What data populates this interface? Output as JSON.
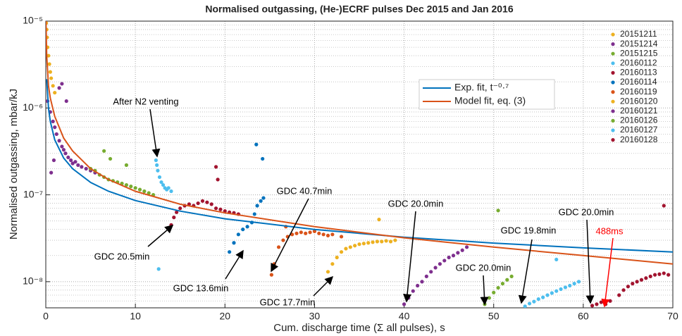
{
  "chart_data": {
    "type": "scatter",
    "title": "Normalised outgassing, (He-)ECRF pulses Dec 2015 and Jan 2016",
    "x_label": "Cum. discharge time (Σ all pulses), s",
    "y_label": "Normalised outgassing, mbar/kJ",
    "log_y": true,
    "grid": true,
    "xlim": [
      0,
      70
    ],
    "xticks": [
      0,
      10,
      20,
      30,
      40,
      50,
      60,
      70
    ],
    "ylim": [
      5e-09,
      1e-05
    ],
    "yticks": [
      {
        "value": 1e-08,
        "label": "10⁻⁸"
      },
      {
        "value": 1e-07,
        "label": "10⁻⁷"
      },
      {
        "value": 1e-06,
        "label": "10⁻⁶"
      },
      {
        "value": 1e-05,
        "label": "10⁻⁵"
      }
    ],
    "series": [
      {
        "name": "20151211",
        "color": "#EDB120",
        "x": [
          0.05,
          0.1,
          0.15,
          0.2,
          0.3,
          0.4,
          0.5,
          0.6,
          0.8,
          1.0
        ],
        "values": [
          9.5e-06,
          8e-06,
          6.5e-06,
          5e-06,
          4e-06,
          3.2e-06,
          2.6e-06,
          2.2e-06,
          1.8e-06,
          1.5e-06
        ]
      },
      {
        "name": "20151214",
        "color": "#7E2F8E",
        "x": [
          0.2,
          0.5,
          0.8,
          1,
          1.2,
          1.5,
          1.8,
          2,
          2.2,
          2.5,
          2.8,
          3,
          3.3,
          3.6,
          4,
          4.5,
          5,
          5.5,
          1.5,
          1.8,
          2.3,
          0.6,
          0.9
        ],
        "values": [
          1.2e-06,
          9e-07,
          7e-07,
          6e-07,
          5e-07,
          4.2e-07,
          3.6e-07,
          3.3e-07,
          3e-07,
          2.7e-07,
          2.5e-07,
          2.3e-07,
          2.4e-07,
          2.2e-07,
          2.1e-07,
          2e-07,
          1.9e-07,
          1.8e-07,
          1.7e-06,
          1.9e-06,
          1.2e-06,
          1.8e-07,
          2.5e-07
        ]
      },
      {
        "name": "20151215",
        "color": "#77AC30",
        "x": [
          5,
          5.5,
          6,
          6.5,
          7,
          7.5,
          8,
          8.5,
          9,
          9.5,
          10,
          10.5,
          11,
          11.5,
          12,
          6.5,
          7.2,
          9
        ],
        "values": [
          2e-07,
          1.9e-07,
          1.7e-07,
          1.6e-07,
          1.5e-07,
          1.45e-07,
          1.4e-07,
          1.35e-07,
          1.3e-07,
          1.25e-07,
          1.2e-07,
          1.15e-07,
          1.1e-07,
          1.05e-07,
          1e-07,
          3.2e-07,
          2.6e-07,
          2.2e-07
        ]
      },
      {
        "name": "20160112",
        "color": "#4DBEEE",
        "x": [
          12.3,
          12.4,
          12.5,
          12.7,
          12.9,
          13.1,
          13.3,
          13.5,
          13.7,
          14,
          12.6
        ],
        "values": [
          2.5e-07,
          2.2e-07,
          1.9e-07,
          1.6e-07,
          1.4e-07,
          1.3e-07,
          1.2e-07,
          1.15e-07,
          1.2e-07,
          1.1e-07,
          1.4e-08
        ]
      },
      {
        "name": "20160113",
        "color": "#A2142F",
        "x": [
          14,
          14.3,
          14.6,
          15,
          15.5,
          16,
          16.5,
          17,
          17.5,
          18,
          18.5,
          19,
          19.5,
          20,
          20.5,
          21,
          21.5,
          19,
          19.2
        ],
        "values": [
          4.5e-08,
          5.5e-08,
          6.3e-08,
          7e-08,
          7.5e-08,
          7.8e-08,
          7.5e-08,
          8e-08,
          8.5e-08,
          8.2e-08,
          7.8e-08,
          7e-08,
          6.8e-08,
          6.5e-08,
          6.3e-08,
          6.2e-08,
          6e-08,
          2.1e-07,
          1.5e-07
        ]
      },
      {
        "name": "20160114",
        "color": "#0072BD",
        "x": [
          20.5,
          21,
          21.5,
          22,
          22.5,
          23,
          23.3,
          23.6,
          24,
          24.3,
          23.5,
          24.2
        ],
        "values": [
          2.2e-08,
          2.8e-08,
          3.5e-08,
          4e-08,
          4.3e-08,
          4.8e-08,
          6e-08,
          7.5e-08,
          8.5e-08,
          9.2e-08,
          3.8e-07,
          2.6e-07
        ]
      },
      {
        "name": "20160119",
        "color": "#D95319",
        "x": [
          25.2,
          25.5,
          26,
          26.5,
          27,
          27.5,
          28,
          28.5,
          29,
          29.5,
          30,
          30.5,
          31,
          31.5,
          32,
          33,
          26.8
        ],
        "values": [
          1.2e-08,
          1.6e-08,
          2.5e-08,
          3e-08,
          3.3e-08,
          3.5e-08,
          3.6e-08,
          3.7e-08,
          3.6e-08,
          3.7e-08,
          3.8e-08,
          3.6e-08,
          3.5e-08,
          3.4e-08,
          3.5e-08,
          3.3e-08,
          4.3e-08
        ]
      },
      {
        "name": "20160120",
        "color": "#EDB120",
        "x": [
          31.5,
          32,
          32.5,
          33,
          33.5,
          34,
          34.5,
          35,
          35.5,
          36,
          36.5,
          37,
          37.5,
          38,
          38.5,
          39,
          37.2
        ],
        "values": [
          1.3e-08,
          1.6e-08,
          1.9e-08,
          2.2e-08,
          2.4e-08,
          2.5e-08,
          2.6e-08,
          2.7e-08,
          2.75e-08,
          2.8e-08,
          2.85e-08,
          2.9e-08,
          2.9e-08,
          2.95e-08,
          2.9e-08,
          3e-08,
          5.2e-08
        ]
      },
      {
        "name": "20160121",
        "color": "#7E2F8E",
        "x": [
          40,
          40.5,
          41,
          41.5,
          42,
          42.5,
          43,
          43.5,
          44,
          44.5,
          45,
          45.5,
          46,
          46.5,
          47
        ],
        "values": [
          5.5e-09,
          6.5e-09,
          7.8e-09,
          9e-09,
          1e-08,
          1.15e-08,
          1.3e-08,
          1.45e-08,
          1.6e-08,
          1.75e-08,
          1.9e-08,
          2e-08,
          2.15e-08,
          2.3e-08,
          2.5e-08
        ]
      },
      {
        "name": "20160126",
        "color": "#77AC30",
        "x": [
          49,
          49.5,
          50,
          50.5,
          51,
          51.5,
          52,
          50.5
        ],
        "values": [
          5.5e-09,
          6.5e-09,
          7.5e-09,
          8.5e-09,
          9.5e-09,
          1.05e-08,
          1.15e-08,
          6.6e-08
        ]
      },
      {
        "name": "20160127",
        "color": "#4DBEEE",
        "x": [
          53.5,
          54,
          54.5,
          55,
          55.5,
          56,
          56.5,
          57,
          57.5,
          58,
          58.5,
          59,
          59.5,
          57
        ],
        "values": [
          5.2e-09,
          5.6e-09,
          5.9e-09,
          6.3e-09,
          6.6e-09,
          7e-09,
          7.4e-09,
          7.8e-09,
          8.2e-09,
          8.6e-09,
          9e-09,
          9.5e-09,
          1e-08,
          1.8e-08
        ]
      },
      {
        "name": "20160128",
        "color": "#A2142F",
        "x": [
          61,
          61.5,
          62,
          62.5,
          63,
          64,
          64.5,
          65,
          65.5,
          66,
          66.5,
          67,
          67.5,
          68,
          68.5,
          69,
          69.5,
          69
        ],
        "values": [
          5.3e-09,
          5.5e-09,
          5.8e-09,
          5.5e-09,
          6e-09,
          7e-09,
          8e-09,
          8.8e-09,
          9.5e-09,
          1e-08,
          1.05e-08,
          1.1e-08,
          1.15e-08,
          1.2e-08,
          1.22e-08,
          1.25e-08,
          1.2e-08,
          7.5e-08
        ]
      }
    ],
    "fits": [
      {
        "name": "Exp. fit, t⁻⁰·⁷",
        "color": "#0072BD",
        "x": [
          0.1,
          0.3,
          0.5,
          1,
          2,
          3,
          5,
          7,
          10,
          15,
          20,
          30,
          40,
          50,
          60,
          70
        ],
        "values": [
          2.15e-06,
          1e-06,
          7e-07,
          4.3e-07,
          2.65e-07,
          2e-07,
          1.39e-07,
          1.1e-07,
          8.6e-08,
          6.5e-08,
          5.3e-08,
          4e-08,
          3.25e-08,
          2.78e-08,
          2.45e-08,
          2.2e-08
        ]
      },
      {
        "name": "Model fit, eq. (3)",
        "color": "#D95319",
        "x": [
          0.02,
          0.1,
          0.3,
          0.5,
          1,
          2,
          3,
          5,
          7,
          10,
          15,
          20,
          30,
          40,
          50,
          60,
          70
        ],
        "values": [
          1e-05,
          4e-06,
          1.8e-06,
          1.3e-06,
          8e-07,
          4.5e-07,
          3.2e-07,
          2e-07,
          1.5e-07,
          1.1e-07,
          7.8e-08,
          6.2e-08,
          4.3e-08,
          3.2e-08,
          2.5e-08,
          2e-08,
          1.6e-08
        ]
      }
    ],
    "annotations": [
      {
        "text": "After N2 venting"
      },
      {
        "text": "GDC 20.5min"
      },
      {
        "text": "GDC 13.6min"
      },
      {
        "text": "GDC 40.7min"
      },
      {
        "text": "GDC 17.7min"
      },
      {
        "text": "GDC 20.0min"
      },
      {
        "text": "GDC 20.0min"
      },
      {
        "text": "GDC 19.8min"
      },
      {
        "text": "GDC 20.0min"
      },
      {
        "text": "488ms",
        "color": "#FF0000"
      }
    ]
  }
}
